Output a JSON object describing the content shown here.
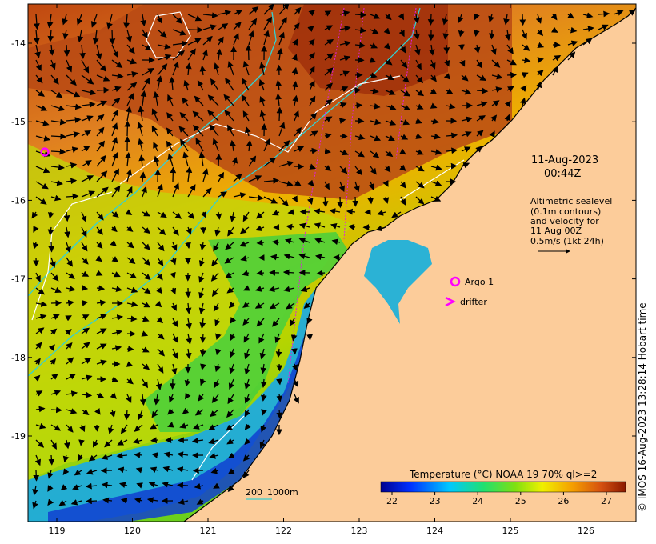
{
  "map": {
    "axes": {
      "x_ticks": [
        "119",
        "120",
        "121",
        "122",
        "123",
        "124",
        "125",
        "126"
      ],
      "y_ticks": [
        "-14",
        "-15",
        "-16",
        "-17",
        "-18",
        "-19"
      ]
    },
    "annotations": {
      "date": "11-Aug-2023",
      "time": "00:44Z",
      "altimetry_lines": [
        "Altimetric sealevel",
        "(0.1m contours)",
        "and velocity for",
        "11 Aug 00Z",
        "0.5m/s (1kt 24h)"
      ],
      "argo_label": "Argo 1",
      "drifter_label": "drifter",
      "scale_200": "200",
      "scale_1000": "1000m"
    },
    "colorbar": {
      "title": "Temperature (°C) NOAA 19 70% ql>=2",
      "tick_labels": [
        "22",
        "23",
        "24",
        "25",
        "26",
        "27"
      ]
    },
    "credit": "© IMOS 16-Aug-2023 13:28:14 Hobart time",
    "colors": {
      "land": "#fccc9a",
      "argo_marker": "#ff00ff",
      "drifter_marker": "#ff00ff",
      "isobath": "#35d0d0",
      "sealevel_contour": "#ffffff",
      "vector": "#000000"
    }
  }
}
